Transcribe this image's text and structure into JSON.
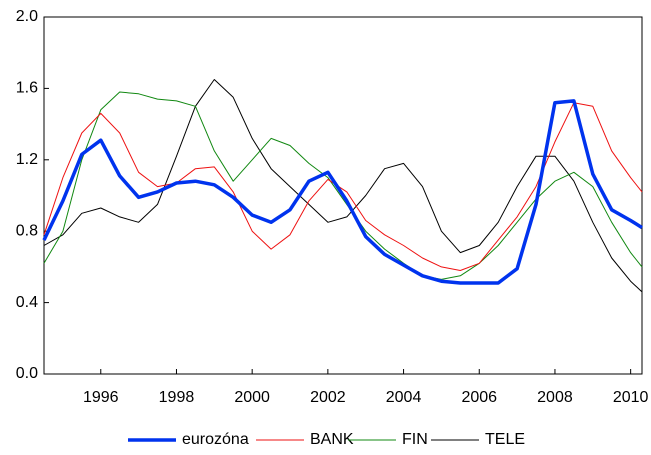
{
  "chart_data": {
    "type": "line",
    "x": [
      1994.5,
      1995,
      1995.5,
      1996,
      1996.5,
      1997,
      1997.5,
      1998,
      1998.5,
      1999,
      1999.5,
      2000,
      2000.5,
      2001,
      2001.5,
      2002,
      2002.5,
      2003,
      2003.5,
      2004,
      2004.5,
      2005,
      2005.5,
      2006,
      2006.5,
      2007,
      2007.5,
      2008,
      2008.5,
      2009,
      2009.5,
      2010,
      2010.3
    ],
    "series": [
      {
        "name": "eurozóna",
        "color": "#0033ee",
        "width": 3.5,
        "values": [
          0.75,
          0.97,
          1.23,
          1.31,
          1.11,
          0.99,
          1.02,
          1.07,
          1.08,
          1.06,
          0.99,
          0.89,
          0.85,
          0.92,
          1.08,
          1.13,
          0.97,
          0.77,
          0.67,
          0.61,
          0.55,
          0.52,
          0.51,
          0.51,
          0.51,
          0.59,
          0.95,
          1.52,
          1.53,
          1.12,
          0.92,
          0.86,
          0.82
        ]
      },
      {
        "name": "BANK",
        "color": "#ee1111",
        "width": 1,
        "values": [
          0.78,
          1.1,
          1.35,
          1.46,
          1.35,
          1.13,
          1.05,
          1.07,
          1.15,
          1.16,
          1.02,
          0.8,
          0.7,
          0.78,
          0.97,
          1.09,
          1.02,
          0.86,
          0.78,
          0.72,
          0.65,
          0.6,
          0.58,
          0.62,
          0.75,
          0.88,
          1.05,
          1.3,
          1.52,
          1.5,
          1.25,
          1.1,
          1.02
        ]
      },
      {
        "name": "FIN",
        "color": "#118811",
        "width": 1,
        "values": [
          0.62,
          0.8,
          1.2,
          1.48,
          1.58,
          1.57,
          1.54,
          1.53,
          1.5,
          1.25,
          1.08,
          1.2,
          1.32,
          1.28,
          1.18,
          1.1,
          0.95,
          0.8,
          0.7,
          0.62,
          0.55,
          0.53,
          0.55,
          0.62,
          0.72,
          0.85,
          0.98,
          1.08,
          1.13,
          1.05,
          0.85,
          0.68,
          0.6
        ]
      },
      {
        "name": "TELE",
        "color": "#000000",
        "width": 1,
        "values": [
          0.72,
          0.78,
          0.9,
          0.93,
          0.88,
          0.85,
          0.95,
          1.22,
          1.5,
          1.65,
          1.55,
          1.32,
          1.15,
          1.05,
          0.95,
          0.85,
          0.88,
          1.0,
          1.15,
          1.18,
          1.05,
          0.8,
          0.68,
          0.72,
          0.85,
          1.05,
          1.22,
          1.22,
          1.08,
          0.85,
          0.65,
          0.52,
          0.46
        ]
      }
    ],
    "xlim": [
      1994.5,
      2010.3
    ],
    "xticks": [
      1996,
      1998,
      2000,
      2002,
      2004,
      2006,
      2008,
      2010
    ],
    "ylim": [
      0,
      2
    ],
    "yticks": [
      {
        "value": 0,
        "label": "0.0"
      },
      {
        "value": 0.4,
        "label": "0.4"
      },
      {
        "value": 0.8,
        "label": "0.8"
      },
      {
        "value": 1.2,
        "label": "1.2"
      },
      {
        "value": 1.6,
        "label": "1.6"
      },
      {
        "value": 2,
        "label": "2.0"
      }
    ],
    "grid": false,
    "legend": "bottom"
  }
}
